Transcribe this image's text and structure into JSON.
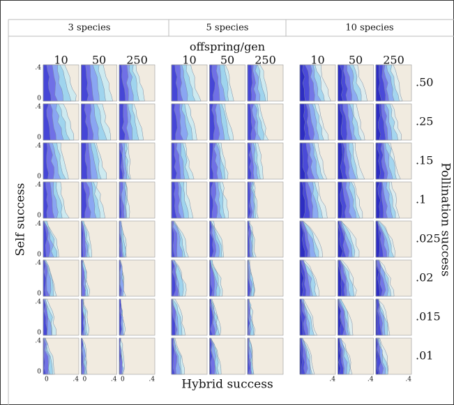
{
  "header": {
    "columns": [
      "3 species",
      "5 species",
      "10 species"
    ]
  },
  "figure": {
    "column_title": "offspring/gen",
    "offspring_labels": [
      "10",
      "50",
      "250"
    ],
    "pollination_labels": [
      ".50",
      ".25",
      ".15",
      ".1",
      ".025",
      ".02",
      ".015",
      ".01"
    ],
    "y_tick_labels": [
      ".4",
      "0"
    ],
    "x_tick_labels": [
      "0",
      ".4"
    ],
    "x_title": "Hybrid success",
    "y_title": "Self success",
    "right_title": "Pollination success"
  }
}
